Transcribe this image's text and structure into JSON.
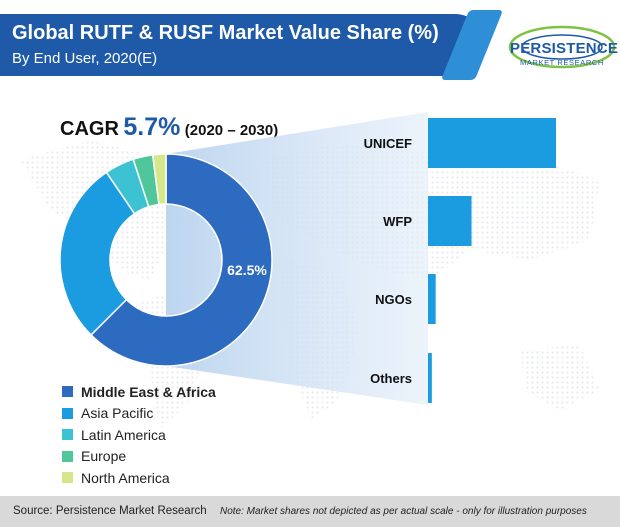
{
  "header": {
    "title": "Global RUTF & RUSF Market Value Share (%)",
    "subtitle": "By End User, 2020(E)"
  },
  "logo": {
    "name": "PERSISTENCE",
    "tagline": "MARKET RESEARCH"
  },
  "cagr": {
    "label": "CAGR",
    "value": "5.7%",
    "period": "(2020 – 2030)"
  },
  "colors": {
    "header": "#1e5aa8",
    "middle_east_africa": "#2d6bc1",
    "asia_pacific": "#1b9be0",
    "latin_america": "#3cc2d2",
    "europe": "#4fc79a",
    "north_america": "#d6e68a",
    "bar": "#1b9be0"
  },
  "footer": {
    "source": "Source: Persistence Market Research",
    "note": "Note: Market shares not depicted as per actual scale - only for illustration purposes"
  },
  "chart_data": [
    {
      "type": "pie",
      "categories": [
        "Middle East & Africa",
        "Asia Pacific",
        "Latin America",
        "Europe",
        "North America"
      ],
      "values": [
        62.5,
        28.0,
        4.5,
        3.0,
        2.0
      ],
      "data_labels": [
        "62.5%",
        "",
        "",
        "",
        ""
      ],
      "legend": "bottom-left",
      "donut": true
    },
    {
      "type": "bar",
      "orientation": "horizontal",
      "categories": [
        "UNICEF",
        "WFP",
        "NGOs",
        "Others"
      ],
      "values": [
        100,
        34,
        6,
        3
      ],
      "grid": false
    }
  ]
}
